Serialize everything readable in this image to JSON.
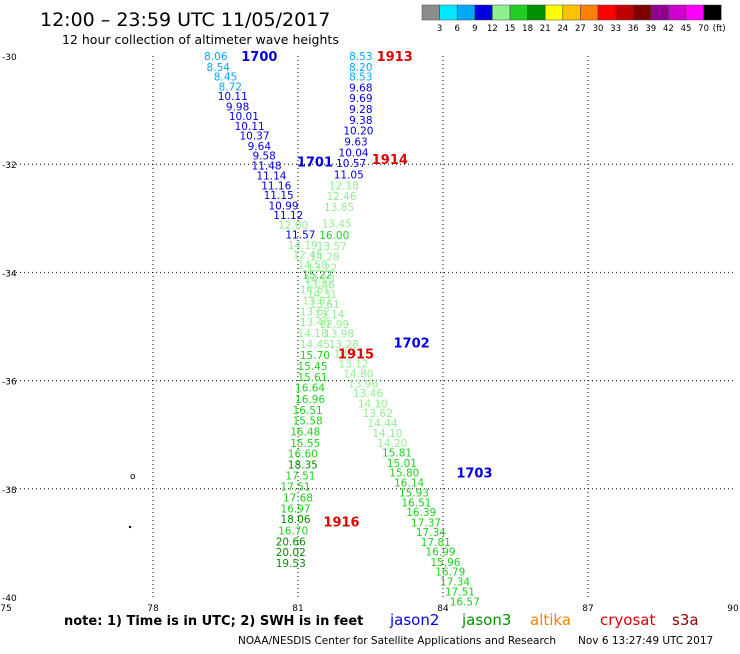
{
  "header": {
    "title": "12:00 – 23:59 UTC 11/05/2017",
    "subtitle": "12 hour collection of altimeter wave heights"
  },
  "scale": {
    "unit": "(ft)",
    "bins": [
      {
        "color": "#8c8c8c",
        "label": "3"
      },
      {
        "color": "#00e8ff",
        "label": "6"
      },
      {
        "color": "#00a8ff",
        "label": "9"
      },
      {
        "color": "#0000e0",
        "label": "12"
      },
      {
        "color": "#90f090",
        "label": "15"
      },
      {
        "color": "#20d020",
        "label": "18"
      },
      {
        "color": "#009000",
        "label": "21"
      },
      {
        "color": "#ffff00",
        "label": "24"
      },
      {
        "color": "#ffc000",
        "label": "27"
      },
      {
        "color": "#ff8000",
        "label": "30"
      },
      {
        "color": "#ff0000",
        "label": "33"
      },
      {
        "color": "#c00000",
        "label": "36"
      },
      {
        "color": "#800000",
        "label": "39"
      },
      {
        "color": "#900090",
        "label": "42"
      },
      {
        "color": "#d000d0",
        "label": "45"
      },
      {
        "color": "#ff00ff",
        "label": "70"
      },
      {
        "color": "#000000",
        "label": ""
      }
    ]
  },
  "map": {
    "lon_range": [
      75,
      90
    ],
    "lat_range": [
      -40,
      -30
    ],
    "lat_ticks": [
      "-30",
      "-32",
      "-34",
      "-36",
      "-38",
      "-40"
    ],
    "lon_ticks": [
      "75",
      "78",
      "81",
      "84",
      "87",
      "90"
    ],
    "grid": true
  },
  "colors": {
    "c3": "#8c8c8c",
    "c6": "#00e8ff",
    "c9": "#00a8ff",
    "c12": "#0000e0",
    "c15": "#90f090",
    "c18": "#20d020",
    "c21": "#009000",
    "c24": "#ffff00"
  },
  "points": [
    {
      "v": "8.06",
      "lon": 79.3,
      "lat": -30.0
    },
    {
      "v": "8.54",
      "lon": 79.35,
      "lat": -30.2
    },
    {
      "v": "8.45",
      "lon": 79.5,
      "lat": -30.38
    },
    {
      "v": "8.72",
      "lon": 79.6,
      "lat": -30.56
    },
    {
      "v": "10.11",
      "lon": 79.65,
      "lat": -30.74
    },
    {
      "v": "9.98",
      "lon": 79.75,
      "lat": -30.93
    },
    {
      "v": "10.01",
      "lon": 79.88,
      "lat": -31.11
    },
    {
      "v": "10.11",
      "lon": 80.0,
      "lat": -31.29
    },
    {
      "v": "10.37",
      "lon": 80.1,
      "lat": -31.47
    },
    {
      "v": "9.64",
      "lon": 80.2,
      "lat": -31.66
    },
    {
      "v": "9.58",
      "lon": 80.3,
      "lat": -31.84
    },
    {
      "v": "11.48",
      "lon": 80.35,
      "lat": -32.02
    },
    {
      "v": "11.14",
      "lon": 80.45,
      "lat": -32.21
    },
    {
      "v": "11.16",
      "lon": 80.55,
      "lat": -32.39
    },
    {
      "v": "11.15",
      "lon": 80.6,
      "lat": -32.57
    },
    {
      "v": "10.99",
      "lon": 80.7,
      "lat": -32.76
    },
    {
      "v": "11.12",
      "lon": 80.8,
      "lat": -32.94
    },
    {
      "v": "12.00",
      "lon": 80.9,
      "lat": -33.12
    },
    {
      "v": "11.57",
      "lon": 81.05,
      "lat": -33.3
    },
    {
      "v": "14.19",
      "lon": 81.1,
      "lat": -33.49
    },
    {
      "v": "12.45",
      "lon": 81.2,
      "lat": -33.67
    },
    {
      "v": "14.58",
      "lon": 81.3,
      "lat": -33.85
    },
    {
      "v": "15.22",
      "lon": 81.4,
      "lat": -34.04
    },
    {
      "v": "13.86",
      "lon": 81.45,
      "lat": -34.22
    },
    {
      "v": "14.31",
      "lon": 81.5,
      "lat": -34.4
    },
    {
      "v": "13.61",
      "lon": 81.55,
      "lat": -34.58
    },
    {
      "v": "13.14",
      "lon": 81.65,
      "lat": -34.77
    },
    {
      "v": "12.99",
      "lon": 81.75,
      "lat": -34.95
    },
    {
      "v": "13.98",
      "lon": 81.85,
      "lat": -35.13
    },
    {
      "v": "13.28",
      "lon": 81.95,
      "lat": -35.32
    },
    {
      "v": "13.71",
      "lon": 82.05,
      "lat": -35.5
    },
    {
      "v": "13.12",
      "lon": 82.15,
      "lat": -35.68
    },
    {
      "v": "14.80",
      "lon": 82.25,
      "lat": -35.87
    },
    {
      "v": "13.96",
      "lon": 82.35,
      "lat": -36.05
    },
    {
      "v": "13.46",
      "lon": 82.45,
      "lat": -36.23
    },
    {
      "v": "14.10",
      "lon": 82.55,
      "lat": -36.42
    },
    {
      "v": "13.62",
      "lon": 82.65,
      "lat": -36.6
    },
    {
      "v": "14.44",
      "lon": 82.75,
      "lat": -36.78
    },
    {
      "v": "14.10",
      "lon": 82.85,
      "lat": -36.97
    },
    {
      "v": "14.20",
      "lon": 82.95,
      "lat": -37.15
    },
    {
      "v": "15.81",
      "lon": 83.05,
      "lat": -37.33
    },
    {
      "v": "15.01",
      "lon": 83.15,
      "lat": -37.52
    },
    {
      "v": "15.80",
      "lon": 83.2,
      "lat": -37.7
    },
    {
      "v": "16.14",
      "lon": 83.3,
      "lat": -37.88
    },
    {
      "v": "15.93",
      "lon": 83.4,
      "lat": -38.07
    },
    {
      "v": "16.51",
      "lon": 83.45,
      "lat": -38.25
    },
    {
      "v": "16.39",
      "lon": 83.55,
      "lat": -38.43
    },
    {
      "v": "17.37",
      "lon": 83.65,
      "lat": -38.62
    },
    {
      "v": "17.34",
      "lon": 83.75,
      "lat": -38.8
    },
    {
      "v": "17.81",
      "lon": 83.85,
      "lat": -38.98
    },
    {
      "v": "16.99",
      "lon": 83.95,
      "lat": -39.16
    },
    {
      "v": "15.96",
      "lon": 84.05,
      "lat": -39.35
    },
    {
      "v": "16.79",
      "lon": 84.15,
      "lat": -39.53
    },
    {
      "v": "17.34",
      "lon": 84.25,
      "lat": -39.71
    },
    {
      "v": "17.51",
      "lon": 84.35,
      "lat": -39.9
    },
    {
      "v": "16.57",
      "lon": 84.45,
      "lat": -40.08
    },
    {
      "v": "8.53",
      "lon": 82.3,
      "lat": -30.0
    },
    {
      "v": "8.20",
      "lon": 82.3,
      "lat": -30.2
    },
    {
      "v": "8.53",
      "lon": 82.3,
      "lat": -30.38
    },
    {
      "v": "9.68",
      "lon": 82.3,
      "lat": -30.58
    },
    {
      "v": "9.69",
      "lon": 82.3,
      "lat": -30.78
    },
    {
      "v": "9.28",
      "lon": 82.3,
      "lat": -30.98
    },
    {
      "v": "9.38",
      "lon": 82.3,
      "lat": -31.18
    },
    {
      "v": "10.20",
      "lon": 82.25,
      "lat": -31.38
    },
    {
      "v": "9.63",
      "lon": 82.2,
      "lat": -31.58
    },
    {
      "v": "10.04",
      "lon": 82.15,
      "lat": -31.78
    },
    {
      "v": "10.57",
      "lon": 82.1,
      "lat": -31.98
    },
    {
      "v": "11.05",
      "lon": 82.05,
      "lat": -32.19
    },
    {
      "v": "12.18",
      "lon": 81.95,
      "lat": -32.39
    },
    {
      "v": "12.46",
      "lon": 81.9,
      "lat": -32.59
    },
    {
      "v": "13.85",
      "lon": 81.85,
      "lat": -32.79
    },
    {
      "v": "13.45",
      "lon": 81.8,
      "lat": -33.1
    },
    {
      "v": "16.00",
      "lon": 81.75,
      "lat": -33.31
    },
    {
      "v": "13.57",
      "lon": 81.7,
      "lat": -33.51
    },
    {
      "v": "14.28",
      "lon": 81.55,
      "lat": -33.71
    },
    {
      "v": "13.22",
      "lon": 81.5,
      "lat": -33.91
    },
    {
      "v": "14.13",
      "lon": 81.45,
      "lat": -34.11
    },
    {
      "v": "14.61",
      "lon": 81.35,
      "lat": -34.32
    },
    {
      "v": "13.81",
      "lon": 81.4,
      "lat": -34.52
    },
    {
      "v": "13.62",
      "lon": 81.35,
      "lat": -34.72
    },
    {
      "v": "13.46",
      "lon": 81.35,
      "lat": -34.92
    },
    {
      "v": "14.18",
      "lon": 81.3,
      "lat": -35.12
    },
    {
      "v": "14.45",
      "lon": 81.35,
      "lat": -35.32
    },
    {
      "v": "15.70",
      "lon": 81.35,
      "lat": -35.53
    },
    {
      "v": "15.45",
      "lon": 81.3,
      "lat": -35.73
    },
    {
      "v": "15.61",
      "lon": 81.3,
      "lat": -35.93
    },
    {
      "v": "16.64",
      "lon": 81.25,
      "lat": -36.13
    },
    {
      "v": "16.96",
      "lon": 81.25,
      "lat": -36.34
    },
    {
      "v": "16.51",
      "lon": 81.2,
      "lat": -36.54
    },
    {
      "v": "15.58",
      "lon": 81.2,
      "lat": -36.74
    },
    {
      "v": "16.48",
      "lon": 81.15,
      "lat": -36.94
    },
    {
      "v": "15.55",
      "lon": 81.15,
      "lat": -37.15
    },
    {
      "v": "16.60",
      "lon": 81.1,
      "lat": -37.35
    },
    {
      "v": "18.35",
      "lon": 81.1,
      "lat": -37.55
    },
    {
      "v": "17.51",
      "lon": 81.05,
      "lat": -37.75
    },
    {
      "v": "17.51",
      "lon": 80.95,
      "lat": -37.96
    },
    {
      "v": "17.68",
      "lon": 81.0,
      "lat": -38.16
    },
    {
      "v": "16.97",
      "lon": 80.95,
      "lat": -38.36
    },
    {
      "v": "18.06",
      "lon": 80.95,
      "lat": -38.56
    },
    {
      "v": "16.70",
      "lon": 80.9,
      "lat": -38.77
    },
    {
      "v": "20.66",
      "lon": 80.85,
      "lat": -38.97
    },
    {
      "v": "20.02",
      "lon": 80.85,
      "lat": -39.17
    },
    {
      "v": "19.53",
      "lon": 80.85,
      "lat": -39.37
    }
  ],
  "passes": [
    {
      "label": "1700",
      "color": "#0000e0",
      "lon": 80.2,
      "lat": -30.0
    },
    {
      "label": "1701",
      "color": "#0000e0",
      "lon": 81.35,
      "lat": -31.95
    },
    {
      "label": "1702",
      "color": "#0000e0",
      "lon": 83.35,
      "lat": -35.3
    },
    {
      "label": "1703",
      "color": "#0000e0",
      "lon": 84.65,
      "lat": -37.7
    },
    {
      "label": "1913",
      "color": "#e00000",
      "lon": 83.0,
      "lat": -30.0
    },
    {
      "label": "1914",
      "color": "#e00000",
      "lon": 82.9,
      "lat": -31.9
    },
    {
      "label": "1915",
      "color": "#e00000",
      "lon": 82.2,
      "lat": -35.5
    },
    {
      "label": "1916",
      "color": "#e00000",
      "lon": 81.9,
      "lat": -38.6
    }
  ],
  "footer": {
    "note": "note: 1) Time is in UTC; 2) SWH is in feet",
    "satellites": [
      {
        "name": "jason2",
        "color": "#0000e0"
      },
      {
        "name": "jason3",
        "color": "#009000"
      },
      {
        "name": "altika",
        "color": "#ff8000"
      },
      {
        "name": "cryosat",
        "color": "#e00000"
      },
      {
        "name": "s3a",
        "color": "#900000"
      }
    ],
    "credit_left": "NOAA/NESDIS Center for Satellite Applications and Research",
    "credit_right": "Nov  6 13:27:49 UTC 2017"
  }
}
